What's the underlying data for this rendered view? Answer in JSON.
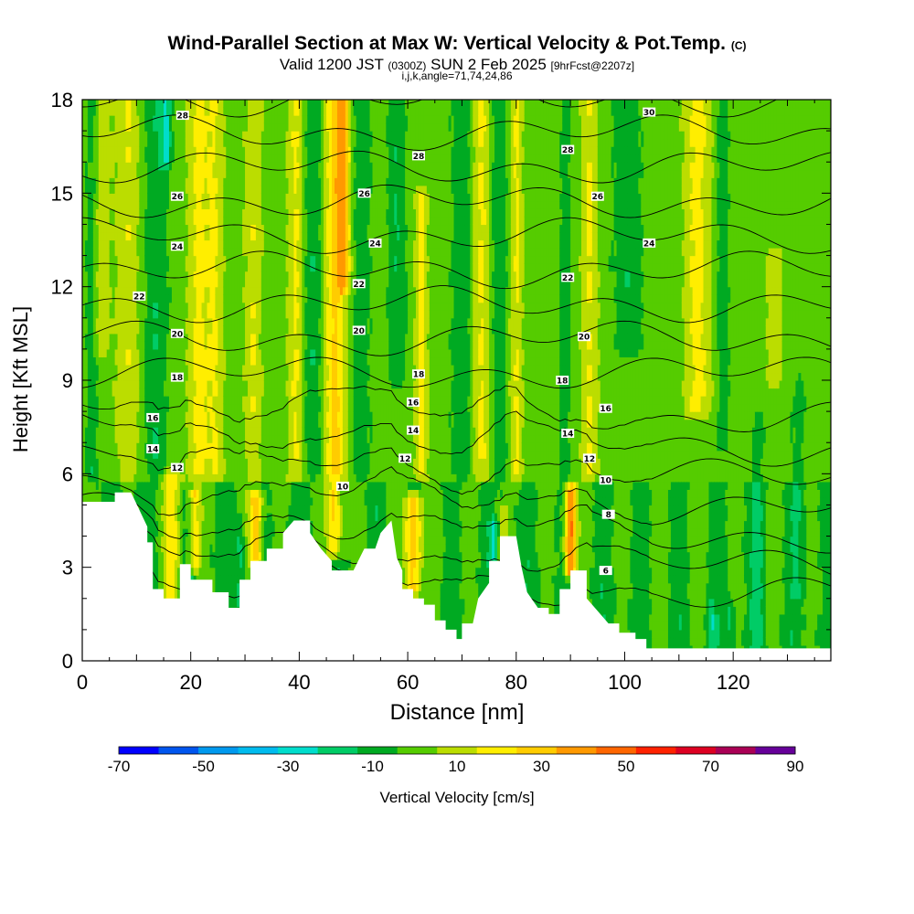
{
  "title": {
    "main": "Wind-Parallel Section at Max W: Vertical Velocity & Pot.Temp.",
    "copyright": "(C)",
    "valid_prefix": "Valid 1200 JST",
    "valid_utc": "(0300Z)",
    "valid_date": "SUN 2 Feb 2025",
    "forecast": "[9hrFcst@2207z]",
    "indices": "i,j,k,angle=71,74,24,86"
  },
  "chart_data": {
    "type": "heatmap",
    "xlabel": "Distance [nm]",
    "ylabel": "Height [Kft MSL]",
    "xlim": [
      0,
      138
    ],
    "ylim": [
      0,
      18
    ],
    "x_ticks": [
      "0",
      "20",
      "40",
      "60",
      "80",
      "100",
      "120"
    ],
    "y_ticks": [
      "0",
      "3",
      "6",
      "9",
      "12",
      "15",
      "18"
    ],
    "colorbar": {
      "label": "Vertical Velocity [cm/s]",
      "ticks": [
        "-70",
        "-50",
        "-30",
        "-10",
        "10",
        "30",
        "50",
        "70",
        "90"
      ],
      "bounds": [
        -70,
        -60,
        -50,
        -40,
        -30,
        -20,
        -10,
        0,
        10,
        20,
        30,
        40,
        50,
        60,
        70,
        80,
        90
      ],
      "colors": [
        "#0000ff",
        "#0055ee",
        "#0099ee",
        "#00bbee",
        "#00ddcc",
        "#00cc66",
        "#00aa22",
        "#55cc00",
        "#bbdd00",
        "#ffee00",
        "#ffcc00",
        "#ff9900",
        "#ff6600",
        "#ff2200",
        "#dd0022",
        "#aa0055",
        "#660099"
      ]
    },
    "terrain": [
      [
        0,
        5.1
      ],
      [
        6,
        5.1
      ],
      [
        6,
        5.4
      ],
      [
        9,
        5.4
      ],
      [
        12,
        4.3
      ],
      [
        12,
        3.8
      ],
      [
        13,
        3.8
      ],
      [
        13,
        2.3
      ],
      [
        15,
        2.3
      ],
      [
        15,
        2.0
      ],
      [
        18,
        2.0
      ],
      [
        18,
        3.1
      ],
      [
        20,
        3.1
      ],
      [
        20,
        2.6
      ],
      [
        24,
        2.6
      ],
      [
        24,
        2.2
      ],
      [
        27,
        2.2
      ],
      [
        27,
        1.7
      ],
      [
        29,
        1.7
      ],
      [
        29,
        2.6
      ],
      [
        31,
        2.6
      ],
      [
        31,
        3.2
      ],
      [
        34,
        3.2
      ],
      [
        34,
        3.6
      ],
      [
        37,
        3.6
      ],
      [
        37,
        4.1
      ],
      [
        39,
        4.5
      ],
      [
        42,
        4.5
      ],
      [
        42,
        4.1
      ],
      [
        44,
        3.6
      ],
      [
        46,
        3.2
      ],
      [
        46,
        2.9
      ],
      [
        50,
        2.9
      ],
      [
        52,
        3.6
      ],
      [
        54,
        3.6
      ],
      [
        55,
        4.1
      ],
      [
        57,
        4.5
      ],
      [
        58,
        3.3
      ],
      [
        59,
        2.9
      ],
      [
        59,
        2.3
      ],
      [
        61,
        2.3
      ],
      [
        61,
        2.0
      ],
      [
        63,
        2.0
      ],
      [
        63,
        1.8
      ],
      [
        65,
        1.8
      ],
      [
        65,
        1.3
      ],
      [
        67,
        1.3
      ],
      [
        67,
        1.0
      ],
      [
        69,
        1.0
      ],
      [
        69,
        0.7
      ],
      [
        70,
        0.7
      ],
      [
        70,
        1.2
      ],
      [
        72,
        1.2
      ],
      [
        73,
        2.0
      ],
      [
        75,
        2.5
      ],
      [
        75,
        3.2
      ],
      [
        77,
        3.2
      ],
      [
        77,
        4.0
      ],
      [
        80,
        4.0
      ],
      [
        81,
        3.0
      ],
      [
        82,
        2.2
      ],
      [
        84,
        1.7
      ],
      [
        86,
        1.7
      ],
      [
        86,
        1.5
      ],
      [
        88,
        1.5
      ],
      [
        88,
        2.3
      ],
      [
        90,
        2.3
      ],
      [
        90,
        2.9
      ],
      [
        93,
        2.9
      ],
      [
        93,
        2.0
      ],
      [
        95,
        1.6
      ],
      [
        97,
        1.2
      ],
      [
        99,
        1.2
      ],
      [
        99,
        0.9
      ],
      [
        102,
        0.9
      ],
      [
        102,
        0.7
      ],
      [
        104,
        0.7
      ],
      [
        104,
        0.4
      ],
      [
        138,
        0.4
      ]
    ],
    "background_field_cm_s": 5,
    "updraft_bands": [
      {
        "x": 3.5,
        "w": 1.8,
        "v": 12,
        "z0": 10,
        "z1": 18
      },
      {
        "x": 8.5,
        "w": 2.2,
        "v": 14,
        "z0": 6,
        "z1": 18
      },
      {
        "x": 16.5,
        "w": 1.6,
        "v": 22,
        "z0": 2,
        "z1": 6
      },
      {
        "x": 20.5,
        "w": 1.2,
        "v": 32,
        "z0": 3,
        "z1": 5.4
      },
      {
        "x": 21.5,
        "w": 2.0,
        "v": 18,
        "z0": 6,
        "z1": 18
      },
      {
        "x": 24.5,
        "w": 1.5,
        "v": 14,
        "z0": 6,
        "z1": 18
      },
      {
        "x": 32.0,
        "w": 1.3,
        "v": 38,
        "z0": 3.2,
        "z1": 5.3
      },
      {
        "x": 31.5,
        "w": 1.5,
        "v": 14,
        "z0": 6,
        "z1": 18
      },
      {
        "x": 39.5,
        "w": 1.5,
        "v": 18,
        "z0": 6,
        "z1": 18
      },
      {
        "x": 46.5,
        "w": 2.0,
        "v": 28,
        "z0": 6,
        "z1": 18
      },
      {
        "x": 46.5,
        "w": 1.4,
        "v": 35,
        "z0": 3.5,
        "z1": 5.5
      },
      {
        "x": 48.2,
        "w": 1.2,
        "v": 25,
        "z0": 12,
        "z1": 18
      },
      {
        "x": 61.0,
        "w": 1.6,
        "v": 40,
        "z0": 2.3,
        "z1": 5.2
      },
      {
        "x": 62.5,
        "w": 1.2,
        "v": 18,
        "z0": 6,
        "z1": 15
      },
      {
        "x": 73.5,
        "w": 1.5,
        "v": 18,
        "z0": 6,
        "z1": 18
      },
      {
        "x": 77.5,
        "w": 1.2,
        "v": 18,
        "z0": 3,
        "z1": 4.8
      },
      {
        "x": 80.0,
        "w": 1.3,
        "v": 16,
        "z0": 6,
        "z1": 18
      },
      {
        "x": 90.0,
        "w": 1.1,
        "v": 55,
        "z0": 2.9,
        "z1": 5.5
      },
      {
        "x": 93.5,
        "w": 1.5,
        "v": 16,
        "z0": 6,
        "z1": 18
      },
      {
        "x": 113.5,
        "w": 2.5,
        "v": 18,
        "z0": 8,
        "z1": 18
      },
      {
        "x": 127.5,
        "w": 1.5,
        "v": 13,
        "z0": 9,
        "z1": 13
      }
    ],
    "downdraft_bands": [
      {
        "x": 1.8,
        "w": 1.2,
        "v": -12,
        "z0": 6,
        "z1": 18
      },
      {
        "x": 13.5,
        "w": 2.2,
        "v": -14,
        "z0": 6,
        "z1": 18
      },
      {
        "x": 15.5,
        "w": 1.0,
        "v": -22,
        "z0": 16,
        "z1": 18
      },
      {
        "x": 20.0,
        "w": 0.8,
        "v": -14,
        "z0": 2,
        "z1": 5
      },
      {
        "x": 29.0,
        "w": 0.9,
        "v": -15,
        "z0": 1.8,
        "z1": 4.5
      },
      {
        "x": 42.5,
        "w": 2.2,
        "v": -14,
        "z0": 6,
        "z1": 18
      },
      {
        "x": 51.5,
        "w": 1.6,
        "v": -12,
        "z0": 6,
        "z1": 18
      },
      {
        "x": 58.0,
        "w": 1.6,
        "v": -14,
        "z0": 9,
        "z1": 18
      },
      {
        "x": 70.0,
        "w": 2.0,
        "v": -12,
        "z0": 6,
        "z1": 18
      },
      {
        "x": 77.0,
        "w": 1.5,
        "v": -12,
        "z0": 6,
        "z1": 18
      },
      {
        "x": 76.0,
        "w": 0.9,
        "v": -16,
        "z0": 3.2,
        "z1": 4.5
      },
      {
        "x": 89.0,
        "w": 1.0,
        "v": -12,
        "z0": 6,
        "z1": 18
      },
      {
        "x": 100.5,
        "w": 2.5,
        "v": -14,
        "z0": 10,
        "z1": 18
      },
      {
        "x": 118.0,
        "w": 1.2,
        "v": -12,
        "z0": 7,
        "z1": 18
      },
      {
        "x": 119.5,
        "w": 0.8,
        "v": -14,
        "z0": 0.5,
        "z1": 1.8
      },
      {
        "x": 116.0,
        "w": 0.7,
        "v": -14,
        "z0": 0.5,
        "z1": 1.8
      },
      {
        "x": 124.5,
        "w": 1.2,
        "v": -10,
        "z0": 0.5,
        "z1": 8
      },
      {
        "x": 132.0,
        "w": 1.5,
        "v": -8,
        "z0": 2,
        "z1": 9
      }
    ],
    "theta_levels_c": [
      -2,
      0,
      2,
      4,
      6,
      8,
      10,
      12,
      14,
      16,
      18,
      20,
      22,
      24,
      26,
      28,
      30
    ],
    "contour_labels": [
      {
        "x": 18.5,
        "z": 17.5,
        "text": "28"
      },
      {
        "x": 17.5,
        "z": 14.9,
        "text": "26"
      },
      {
        "x": 17.5,
        "z": 13.3,
        "text": "24"
      },
      {
        "x": 10.5,
        "z": 11.7,
        "text": "22"
      },
      {
        "x": 17.5,
        "z": 10.5,
        "text": "20"
      },
      {
        "x": 17.5,
        "z": 9.1,
        "text": "18"
      },
      {
        "x": 13.0,
        "z": 7.8,
        "text": "16"
      },
      {
        "x": 13.0,
        "z": 6.8,
        "text": "14"
      },
      {
        "x": 17.5,
        "z": 6.2,
        "text": "12"
      },
      {
        "x": 62.0,
        "z": 16.2,
        "text": "28"
      },
      {
        "x": 52.0,
        "z": 15.0,
        "text": "26"
      },
      {
        "x": 54.0,
        "z": 13.4,
        "text": "24"
      },
      {
        "x": 51.0,
        "z": 12.1,
        "text": "22"
      },
      {
        "x": 51.0,
        "z": 10.6,
        "text": "20"
      },
      {
        "x": 62.0,
        "z": 9.2,
        "text": "18"
      },
      {
        "x": 61.0,
        "z": 8.3,
        "text": "16"
      },
      {
        "x": 61.0,
        "z": 7.4,
        "text": "14"
      },
      {
        "x": 59.5,
        "z": 6.5,
        "text": "12"
      },
      {
        "x": 48.0,
        "z": 5.6,
        "text": "10"
      },
      {
        "x": 104.5,
        "z": 17.6,
        "text": "30"
      },
      {
        "x": 89.5,
        "z": 16.4,
        "text": "28"
      },
      {
        "x": 95.0,
        "z": 14.9,
        "text": "26"
      },
      {
        "x": 104.5,
        "z": 13.4,
        "text": "24"
      },
      {
        "x": 89.5,
        "z": 12.3,
        "text": "22"
      },
      {
        "x": 92.5,
        "z": 10.4,
        "text": "20"
      },
      {
        "x": 88.5,
        "z": 9.0,
        "text": "18"
      },
      {
        "x": 96.5,
        "z": 8.1,
        "text": "16"
      },
      {
        "x": 89.5,
        "z": 7.3,
        "text": "14"
      },
      {
        "x": 93.5,
        "z": 6.5,
        "text": "12"
      },
      {
        "x": 96.5,
        "z": 5.8,
        "text": "10"
      },
      {
        "x": 97.0,
        "z": 4.7,
        "text": "8"
      },
      {
        "x": 96.5,
        "z": 2.9,
        "text": "6"
      }
    ]
  }
}
